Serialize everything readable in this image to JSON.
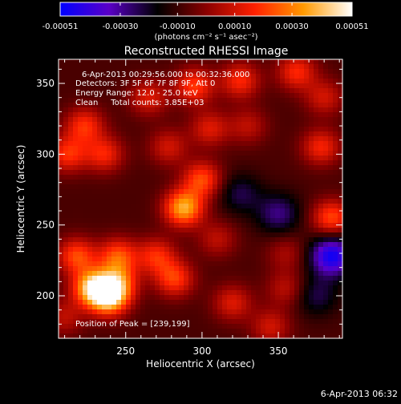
{
  "chart_data": {
    "type": "heatmap",
    "title": "Reconstructed RHESSI Image",
    "xlabel": "Heliocentric X (arcsec)",
    "ylabel": "Heliocentric Y (arcsec)",
    "xlim": [
      206,
      392
    ],
    "ylim": [
      170,
      367
    ],
    "x_ticks": [
      250,
      300,
      350
    ],
    "y_ticks": [
      200,
      250,
      300,
      350
    ],
    "colorbar": {
      "unit_label": "(photons cm⁻² s⁻¹ asec⁻²)",
      "tick_values": [
        -0.00051,
        -0.0003,
        -0.0001,
        0.0001,
        0.0003,
        0.00051
      ],
      "tick_labels": [
        "-0.00051",
        "-0.00030",
        "-0.00010",
        "0.00010",
        "0.00030",
        "0.00051"
      ],
      "range": [
        -0.00051,
        0.00051
      ],
      "colors": [
        "#0000ff",
        "#5a00c8",
        "#000000",
        "#8a0000",
        "#ff2000",
        "#ff9a00",
        "#ffffff"
      ]
    },
    "annotations": [
      "6-Apr-2013 00:29:56.000 to 00:32:36.000",
      "Detectors: 3F 5F 6F 7F 8F 9F, Att 0",
      "Energy Range: 12.0 - 25.0 keV",
      "Clean     Total counts: 3.85E+03",
      "Position of Peak = [239,199]"
    ],
    "peak": {
      "x": 239,
      "y": 199
    },
    "sources": [
      {
        "x": 239,
        "y": 199,
        "v": 0.00051
      },
      {
        "x": 228,
        "y": 206,
        "v": 0.00046
      },
      {
        "x": 245,
        "y": 210,
        "v": 0.0003
      },
      {
        "x": 282,
        "y": 212,
        "v": 0.00028
      },
      {
        "x": 218,
        "y": 228,
        "v": 0.0003
      },
      {
        "x": 245,
        "y": 228,
        "v": 0.0003
      },
      {
        "x": 270,
        "y": 228,
        "v": 0.00025
      },
      {
        "x": 212,
        "y": 300,
        "v": 0.00026
      },
      {
        "x": 236,
        "y": 300,
        "v": 0.00024
      },
      {
        "x": 223,
        "y": 320,
        "v": 0.00026
      },
      {
        "x": 288,
        "y": 262,
        "v": 0.00045
      },
      {
        "x": 300,
        "y": 282,
        "v": 0.0003
      },
      {
        "x": 310,
        "y": 240,
        "v": 0.00015
      },
      {
        "x": 278,
        "y": 305,
        "v": 0.00018
      },
      {
        "x": 305,
        "y": 318,
        "v": 0.0002
      },
      {
        "x": 295,
        "y": 348,
        "v": 0.00028
      },
      {
        "x": 325,
        "y": 352,
        "v": 0.00025
      },
      {
        "x": 330,
        "y": 320,
        "v": 0.00015
      },
      {
        "x": 362,
        "y": 358,
        "v": 0.00025
      },
      {
        "x": 380,
        "y": 340,
        "v": 0.00018
      },
      {
        "x": 378,
        "y": 305,
        "v": 0.00024
      },
      {
        "x": 385,
        "y": 255,
        "v": 0.0003
      },
      {
        "x": 355,
        "y": 230,
        "v": 0.00012
      },
      {
        "x": 355,
        "y": 205,
        "v": 0.00015
      },
      {
        "x": 320,
        "y": 195,
        "v": 0.0002
      },
      {
        "x": 345,
        "y": 178,
        "v": 0.00018
      },
      {
        "x": 210,
        "y": 185,
        "v": 0.00015
      },
      {
        "x": 265,
        "y": 340,
        "v": 0.0002
      }
    ],
    "negative_regions": [
      {
        "x": 385,
        "y": 228,
        "v": -0.0004
      },
      {
        "x": 350,
        "y": 258,
        "v": -0.0002
      },
      {
        "x": 325,
        "y": 272,
        "v": -0.00015
      },
      {
        "x": 375,
        "y": 200,
        "v": -0.00015
      }
    ]
  },
  "timestamp": "6-Apr-2013 06:32"
}
